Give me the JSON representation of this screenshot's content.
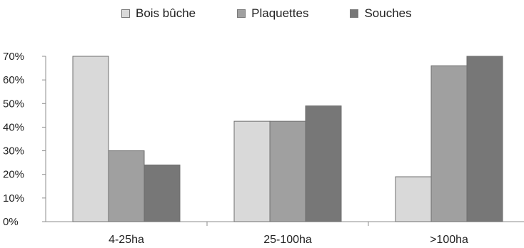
{
  "chart_data": {
    "type": "bar",
    "categories": [
      "4-25ha",
      "25-100ha",
      ">100ha"
    ],
    "series": [
      {
        "name": "Bois bûche",
        "values": [
          70,
          42.5,
          19
        ],
        "color": "#d9d9d9"
      },
      {
        "name": "Plaquettes",
        "values": [
          30,
          42.5,
          66
        ],
        "color": "#a0a0a0"
      },
      {
        "name": "Souches",
        "values": [
          24,
          49,
          70
        ],
        "color": "#777777"
      }
    ],
    "ylim": [
      0,
      70
    ],
    "yticks": [
      0,
      10,
      20,
      30,
      40,
      50,
      60,
      70
    ],
    "ytick_labels": [
      "0%",
      "10%",
      "20%",
      "30%",
      "40%",
      "50%",
      "60%",
      "70%"
    ],
    "grid": false,
    "legend_position": "top-center"
  }
}
